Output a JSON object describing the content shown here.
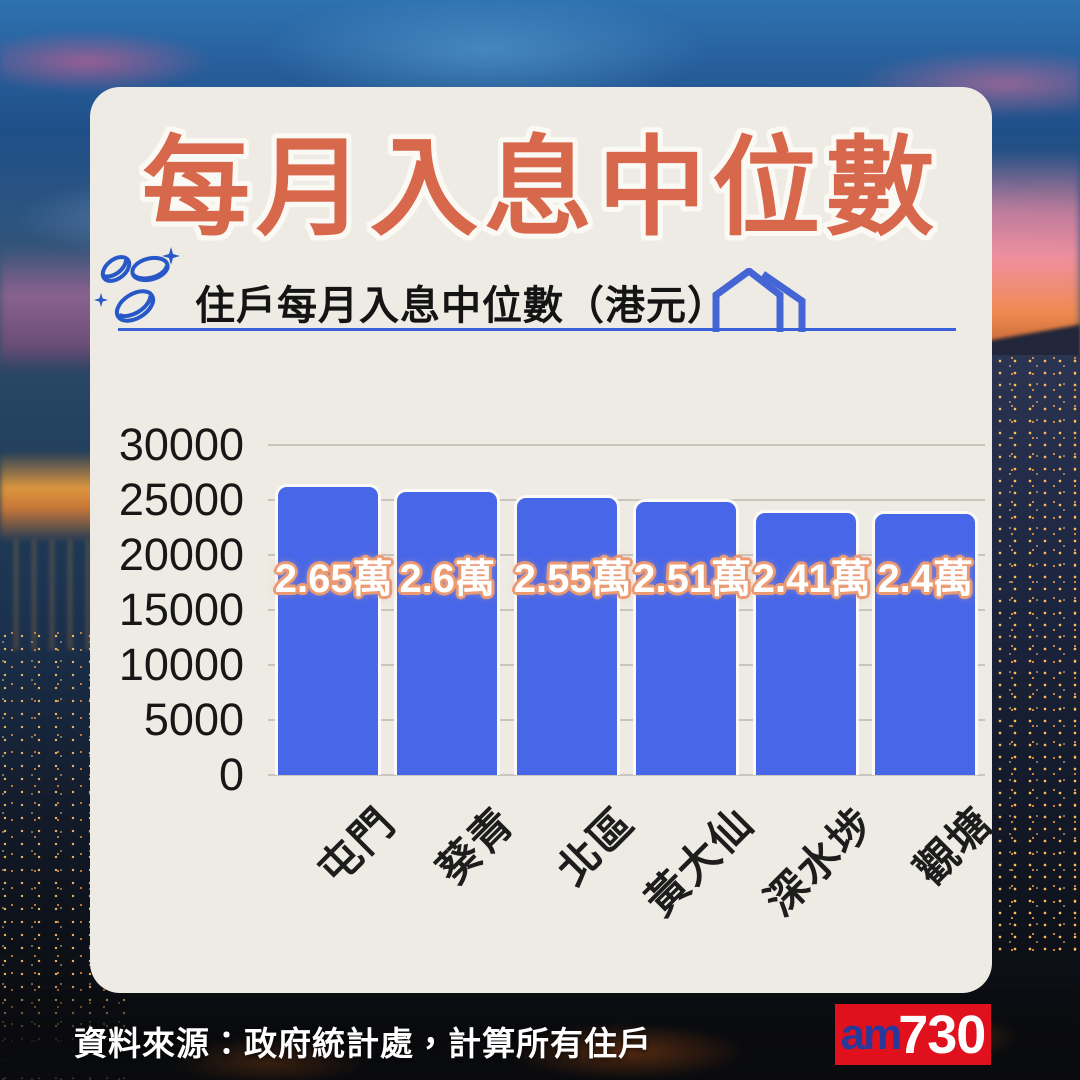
{
  "header": {
    "title": "每月入息中位數"
  },
  "subtitle": {
    "text": "住戶每月入息中位數（港元）"
  },
  "footer": {
    "source": "資料來源：政府統計處，計算所有住戶",
    "logo_prefix": "am",
    "logo_suffix": "730"
  },
  "colors": {
    "title": "#d8684c",
    "card_bg": "#edebe4",
    "bar": "#4766e8",
    "underline": "#3a60d8",
    "grid": "#c8c5bd",
    "bar_label_outline": "#eb9a72",
    "logo_bg": "#e0111c",
    "logo_prefix_color": "#28389b"
  },
  "chart_data": {
    "type": "bar",
    "title": "住戶每月入息中位數（港元）",
    "categories": [
      "屯門",
      "葵青",
      "北區",
      "黃大仙",
      "深水埗",
      "觀塘"
    ],
    "values": [
      26500,
      26000,
      25500,
      25100,
      24100,
      24000
    ],
    "bar_labels": [
      "2.65萬",
      "2.6萬",
      "2.55萬",
      "2.51萬",
      "2.41萬",
      "2.4萬"
    ],
    "xlabel": "",
    "ylabel": "",
    "ylim": [
      0,
      30000
    ],
    "yticks": [
      0,
      5000,
      10000,
      15000,
      20000,
      25000,
      30000
    ],
    "grid": true,
    "legend": false
  }
}
